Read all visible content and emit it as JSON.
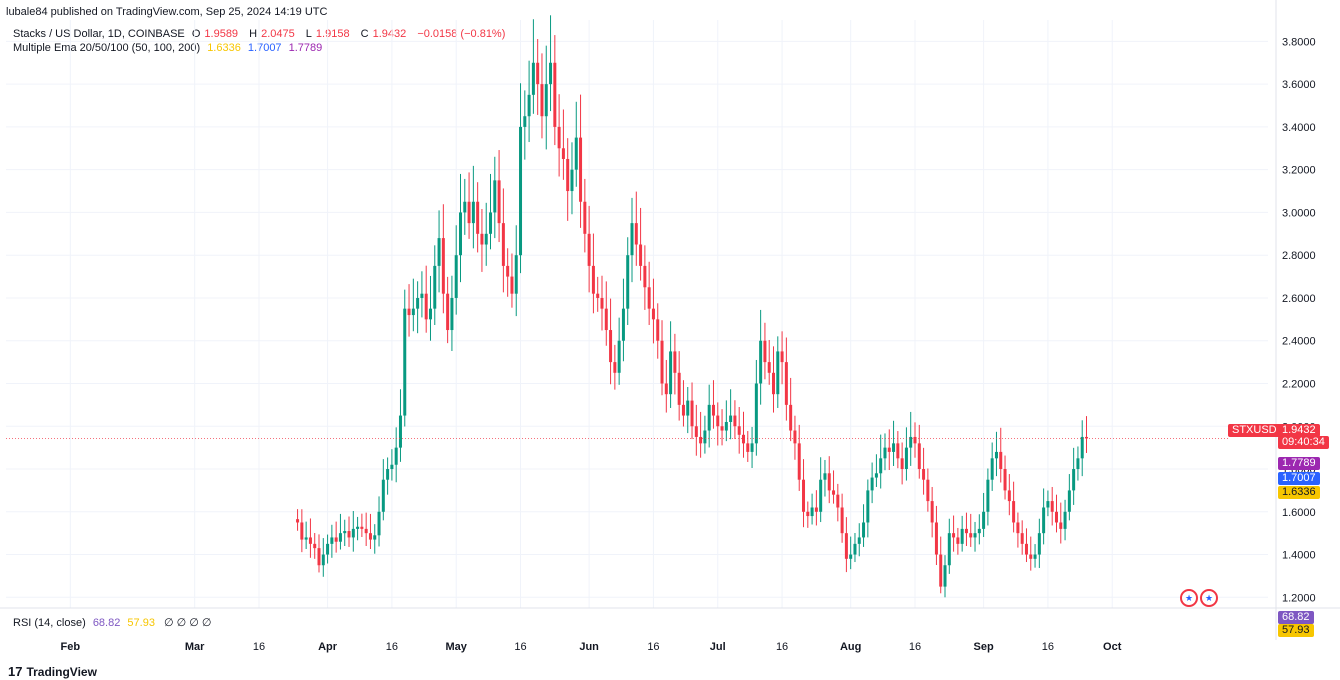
{
  "header": {
    "published": "lubale84 published on TradingView.com, Sep 25, 2024 14:19 UTC"
  },
  "legend": {
    "symbol": "Stacks / US Dollar, 1D, COINBASE",
    "o_label": "O",
    "o_val": "1.9589",
    "h_label": "H",
    "h_val": "2.0475",
    "l_label": "L",
    "l_val": "1.9158",
    "c_label": "C",
    "c_val": "1.9432",
    "change": "−0.0158 (−0.81%)",
    "ema_label": "Multiple Ema 20/50/100 (50, 100, 200)",
    "ema_vals": [
      "1.6336",
      "1.7007",
      "1.7789"
    ]
  },
  "rsi_legend": {
    "label": "RSI (14, close)",
    "val1": "68.82",
    "val2": "57.93",
    "icons": "∅ ∅ ∅ ∅"
  },
  "price_tags": {
    "symbol": "STXUSD",
    "price": "1.9432",
    "countdown": "09:40:34",
    "ema3": "1.7789",
    "ema2": "1.7007",
    "ema1": "1.6336",
    "rsi1": "68.82",
    "rsi2": "57.93"
  },
  "footer": {
    "brand": "TradingView",
    "logo": "17"
  },
  "colors": {
    "up": "#089981",
    "down": "#f23645",
    "ema1": "#f7c600",
    "ema2": "#2962ff",
    "ema3": "#9c27b0",
    "rsi": "#7e57c2"
  },
  "chart_data": {
    "type": "candlestick",
    "ylim": [
      1.15,
      3.9
    ],
    "y_ticks": [
      1.2,
      1.4,
      1.6,
      1.8,
      2.0,
      2.2,
      2.4,
      2.6,
      2.8,
      3.0,
      3.2,
      3.4,
      3.6,
      3.8
    ],
    "x_ticks": [
      {
        "label": "Feb",
        "day": 0
      },
      {
        "label": "Mar",
        "day": 29
      },
      {
        "label": "16",
        "day": 44
      },
      {
        "label": "Apr",
        "day": 60
      },
      {
        "label": "16",
        "day": 75
      },
      {
        "label": "May",
        "day": 90
      },
      {
        "label": "16",
        "day": 105
      },
      {
        "label": "Jun",
        "day": 121
      },
      {
        "label": "16",
        "day": 136
      },
      {
        "label": "Jul",
        "day": 151
      },
      {
        "label": "16",
        "day": 166
      },
      {
        "label": "Aug",
        "day": 182
      },
      {
        "label": "16",
        "day": 197
      },
      {
        "label": "Sep",
        "day": 213
      },
      {
        "label": "16",
        "day": 228
      },
      {
        "label": "Oct",
        "day": 243
      }
    ],
    "day_range": [
      -15,
      270
    ],
    "closes": [
      1.55,
      1.47,
      1.48,
      1.45,
      1.43,
      1.35,
      1.4,
      1.45,
      1.48,
      1.46,
      1.5,
      1.51,
      1.48,
      1.52,
      1.53,
      1.52,
      1.5,
      1.47,
      1.49,
      1.6,
      1.75,
      1.8,
      1.82,
      1.9,
      2.05,
      2.55,
      2.52,
      2.55,
      2.6,
      2.62,
      2.5,
      2.55,
      2.75,
      2.88,
      2.62,
      2.45,
      2.6,
      2.8,
      3.0,
      3.05,
      2.95,
      3.05,
      2.9,
      2.85,
      2.9,
      3.0,
      3.15,
      2.95,
      2.75,
      2.7,
      2.62,
      2.8,
      3.4,
      3.45,
      3.55,
      3.7,
      3.6,
      3.45,
      3.6,
      3.7,
      3.4,
      3.3,
      3.25,
      3.1,
      3.2,
      3.35,
      3.05,
      2.9,
      2.75,
      2.62,
      2.6,
      2.55,
      2.45,
      2.3,
      2.25,
      2.4,
      2.55,
      2.8,
      2.95,
      2.85,
      2.75,
      2.65,
      2.55,
      2.5,
      2.4,
      2.2,
      2.15,
      2.35,
      2.25,
      2.1,
      2.05,
      2.12,
      2.0,
      1.95,
      1.92,
      1.98,
      2.1,
      2.05,
      2.0,
      1.98,
      2.02,
      2.05,
      2.0,
      1.96,
      1.92,
      1.88,
      1.92,
      2.2,
      2.4,
      2.3,
      2.25,
      2.15,
      2.35,
      2.3,
      2.1,
      1.98,
      1.92,
      1.75,
      1.6,
      1.58,
      1.62,
      1.6,
      1.75,
      1.78,
      1.7,
      1.68,
      1.62,
      1.5,
      1.38,
      1.4,
      1.45,
      1.48,
      1.55,
      1.7,
      1.76,
      1.78,
      1.85,
      1.9,
      1.88,
      1.92,
      1.85,
      1.8,
      1.9,
      1.95,
      1.92,
      1.8,
      1.75,
      1.65,
      1.55,
      1.4,
      1.25,
      1.35,
      1.5,
      1.48,
      1.45,
      1.52,
      1.5,
      1.48,
      1.5,
      1.52,
      1.6,
      1.75,
      1.85,
      1.88,
      1.8,
      1.7,
      1.65,
      1.55,
      1.5,
      1.45,
      1.4,
      1.38,
      1.4,
      1.5,
      1.62,
      1.65,
      1.6,
      1.55,
      1.52,
      1.6,
      1.7,
      1.8,
      1.85,
      1.95,
      1.943
    ]
  }
}
